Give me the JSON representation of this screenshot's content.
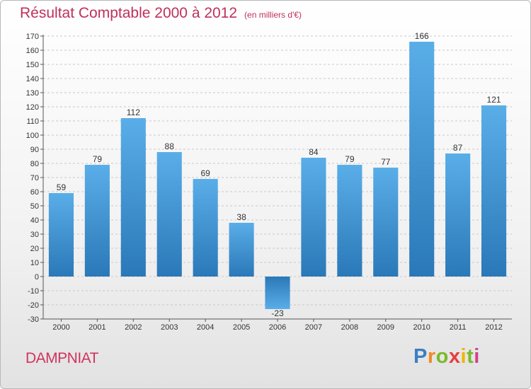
{
  "chart_data": {
    "type": "bar",
    "title": "Résultat Comptable 2000 à 2012",
    "subtitle": "(en milliers d'€)",
    "xlabel": "",
    "ylabel": "",
    "categories": [
      "2000",
      "2001",
      "2002",
      "2003",
      "2004",
      "2005",
      "2006",
      "2007",
      "2008",
      "2009",
      "2010",
      "2011",
      "2012"
    ],
    "values": [
      59,
      79,
      112,
      88,
      69,
      38,
      -23,
      84,
      79,
      77,
      166,
      87,
      121
    ],
    "ylim": [
      -30,
      170
    ],
    "ytick_step": 10,
    "grid": true,
    "legend": "none"
  },
  "commune": "DAMPNIAT",
  "brand": {
    "letters": [
      "P",
      "r",
      "o",
      "x",
      "i",
      "t",
      "i"
    ],
    "colors": [
      "#3b7fc4",
      "#f08a24",
      "#7ab929",
      "#e83e3e",
      "#f0b400",
      "#7ab929",
      "#d43f8d"
    ]
  },
  "colors": {
    "bar_top": "#5aaee8",
    "bar_bottom": "#2a78b8",
    "bar_negative_top": "#2a78b8",
    "bar_negative_bottom": "#5aaee8",
    "title": "#c0305a",
    "grid": "#c8c8c8"
  }
}
